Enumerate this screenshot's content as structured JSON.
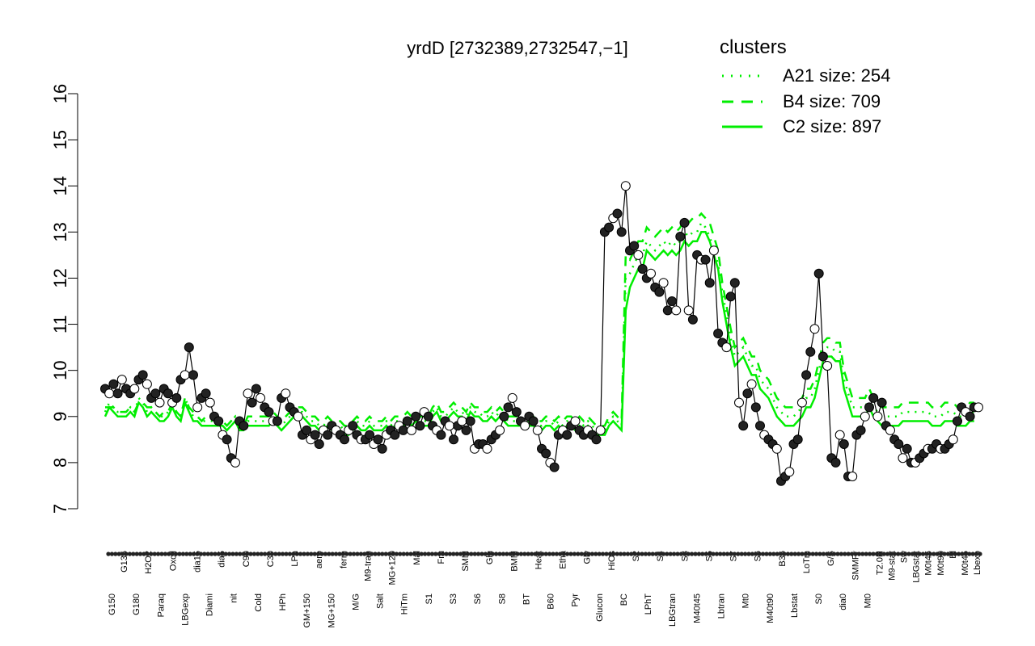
{
  "colors": {
    "accent": "#00ee00",
    "axis": "#000000",
    "point_fill_dark": "#222222",
    "point_fill_light": "#ffffff"
  },
  "chart_data": {
    "type": "line",
    "title": "yrdD [2732389,2732547,−1]",
    "xlabel": "",
    "ylabel": "",
    "ylim": [
      7,
      16
    ],
    "yticks": [
      7,
      8,
      9,
      10,
      11,
      12,
      13,
      14,
      15,
      16
    ],
    "grid": false,
    "legend": {
      "title": "clusters",
      "placement": "top-right",
      "entries": [
        {
          "label": "A21 size: 254",
          "style": "dotted"
        },
        {
          "label": "B4 size: 709",
          "style": "dashed"
        },
        {
          "label": "C2 size: 897",
          "style": "solid"
        }
      ]
    },
    "x_tick_labels_lower": [
      "G150",
      "G180",
      "Paraq",
      "LBGexp",
      "Diami",
      "nit",
      "Cold",
      "HPh",
      "GM+150",
      "MG+150",
      "M/G",
      "Salt",
      "HiTm",
      "S1",
      "S3",
      "S6",
      "S8",
      "BT",
      "B60",
      "Pyr",
      "Glucon",
      "BC",
      "LPhT",
      "LBGtran",
      "M40t45",
      "Lbtran",
      "Mt0",
      "M40t90",
      "Lbstat",
      "S0",
      "dia0",
      "Mt0"
    ],
    "x_tick_labels_upper": [
      "G135",
      "H2O2",
      "Oxctl",
      "dia15",
      "dia5",
      "C90",
      "C30",
      "LPh",
      "aero",
      "ferm",
      "M9-tran",
      "MG+120",
      "Mal",
      "Fru",
      "SMM",
      "Glu",
      "BMM",
      "Heat",
      "Etha",
      "Gly",
      "HiOs",
      "S2",
      "S4",
      "S3",
      "S5",
      "S7",
      "S6",
      "B36",
      "LoTm",
      "G/S",
      "SMMPr",
      "T2.0H",
      "M9-stat",
      "Sw",
      "LBGstat",
      "M0t45",
      "M0t90",
      "Bl",
      "M0t45",
      "Lbexp"
    ],
    "series": [
      {
        "name": "yrdD",
        "values": [
          9.6,
          9.5,
          9.7,
          9.5,
          9.8,
          9.6,
          9.5,
          9.6,
          9.8,
          9.9,
          9.7,
          9.4,
          9.5,
          9.3,
          9.6,
          9.5,
          9.3,
          9.4,
          9.8,
          9.9,
          10.5,
          9.9,
          9.2,
          9.4,
          9.5,
          9.3,
          9.0,
          8.9,
          8.6,
          8.5,
          8.1,
          8.0,
          8.9,
          8.8,
          9.5,
          9.3,
          9.6,
          9.4,
          9.2,
          9.1,
          8.9,
          8.9,
          9.4,
          9.5,
          9.2,
          9.1,
          9.0,
          8.6,
          8.7,
          8.5,
          8.6,
          8.4,
          8.7,
          8.6,
          8.8,
          8.7,
          8.6,
          8.5,
          8.7,
          8.8,
          8.6,
          8.5,
          8.5,
          8.6,
          8.4,
          8.5,
          8.3,
          8.6,
          8.7,
          8.6,
          8.8,
          8.7,
          8.9,
          8.7,
          9.0,
          8.8,
          9.1,
          9.0,
          8.8,
          8.7,
          8.6,
          8.9,
          8.8,
          8.5,
          8.8,
          8.9,
          8.7,
          8.9,
          8.3,
          8.4,
          8.4,
          8.3,
          8.5,
          8.6,
          8.7,
          9.0,
          9.2,
          9.4,
          9.1,
          8.9,
          8.8,
          9.0,
          8.9,
          8.7,
          8.3,
          8.2,
          8.0,
          7.9,
          8.6,
          8.7,
          8.6,
          8.8,
          8.9,
          8.7,
          8.6,
          8.7,
          8.6,
          8.5,
          8.7,
          13.0,
          13.1,
          13.3,
          13.4,
          13.0,
          14.0,
          12.6,
          12.7,
          12.5,
          12.2,
          12.0,
          12.1,
          11.8,
          11.7,
          11.9,
          11.3,
          11.5,
          11.3,
          12.9,
          13.2,
          11.3,
          11.1,
          12.5,
          12.4,
          12.4,
          11.9,
          12.6,
          10.8,
          10.6,
          10.5,
          11.6,
          11.9,
          9.3,
          8.8,
          9.5,
          9.7,
          9.2,
          8.8,
          8.6,
          8.5,
          8.4,
          8.3,
          7.6,
          7.7,
          7.8,
          8.4,
          8.5,
          9.3,
          9.9,
          10.4,
          10.9,
          12.1,
          10.3,
          10.1,
          8.1,
          8.0,
          8.6,
          8.4,
          7.7,
          7.7,
          8.6,
          8.7,
          9.0,
          9.2,
          9.4,
          9.0,
          9.3,
          8.8,
          8.7,
          8.5,
          8.4,
          8.1,
          8.3,
          8.0,
          8.0,
          8.1,
          8.2,
          8.3,
          8.3,
          8.4,
          8.3,
          8.3,
          8.4,
          8.5,
          8.9,
          9.2,
          9.1,
          9.0,
          9.2,
          9.2
        ]
      },
      {
        "name": "C2 size: 897",
        "values": [
          9.0,
          9.2,
          9.1,
          9.0,
          9.0,
          9.0,
          9.1,
          9.0,
          9.3,
          9.2,
          9.0,
          9.1,
          9.0,
          8.9,
          8.9,
          9.0,
          9.2,
          9.0,
          8.9,
          9.3,
          9.1,
          8.9,
          8.9,
          8.8,
          8.8,
          8.8,
          8.8,
          8.8,
          8.8,
          8.7,
          8.8,
          8.9,
          8.7,
          8.7,
          8.8,
          8.8,
          8.8,
          8.8,
          8.8,
          8.8,
          8.9,
          8.8,
          8.7,
          8.8,
          8.9,
          9.0,
          9.0,
          9.0,
          8.9,
          8.8,
          8.8,
          8.7,
          8.7,
          8.8,
          8.7,
          8.7,
          8.7,
          8.6,
          8.6,
          8.7,
          8.8,
          8.7,
          8.7,
          8.8,
          8.7,
          8.7,
          8.7,
          8.8,
          8.7,
          8.8,
          8.8,
          8.8,
          8.9,
          8.8,
          8.9,
          8.8,
          8.8,
          8.8,
          9.0,
          9.1,
          8.9,
          8.9,
          9.0,
          9.1,
          9.0,
          9.0,
          8.9,
          9.1,
          9.0,
          9.0,
          8.9,
          8.9,
          9.0,
          8.9,
          9.0,
          8.9,
          8.8,
          8.8,
          8.8,
          8.8,
          8.8,
          8.8,
          8.8,
          8.7,
          8.7,
          8.8,
          8.8,
          8.7,
          8.8,
          8.7,
          8.8,
          8.8,
          8.7,
          8.8,
          8.7,
          8.8,
          8.7,
          8.6,
          8.6,
          8.6,
          8.8,
          8.9,
          8.8,
          8.7,
          11.3,
          11.8,
          12.0,
          12.2,
          12.2,
          12.6,
          12.5,
          12.4,
          12.5,
          12.6,
          12.5,
          12.6,
          12.5,
          12.6,
          12.8,
          12.7,
          12.8,
          12.8,
          13.0,
          13.0,
          12.8,
          12.5,
          12.2,
          11.5,
          11.0,
          10.5,
          10.1,
          10.2,
          10.3,
          10.1,
          9.9,
          9.9,
          9.6,
          9.5,
          9.4,
          9.2,
          9.0,
          8.9,
          8.8,
          8.8,
          8.8,
          8.9,
          9.0,
          9.2,
          9.2,
          9.4,
          9.8,
          10.2,
          10.3,
          10.3,
          10.2,
          10.2,
          9.6,
          9.3,
          9.0,
          9.0,
          9.0,
          9.0,
          9.2,
          9.0,
          8.9,
          8.8,
          8.8,
          8.8,
          8.8,
          8.8,
          8.9,
          8.9,
          8.9,
          8.9,
          8.9,
          8.9,
          8.9,
          8.8,
          8.8,
          8.8,
          8.9,
          8.9,
          8.9,
          8.8,
          8.8,
          8.8,
          8.9,
          8.9
        ]
      },
      {
        "name": "B4 size: 709",
        "values": [
          9.2,
          9.2,
          9.2,
          9.1,
          9.1,
          9.1,
          9.2,
          9.1,
          9.3,
          9.3,
          9.2,
          9.2,
          9.1,
          9.0,
          9.1,
          9.1,
          9.3,
          9.1,
          9.0,
          9.4,
          9.2,
          9.1,
          9.0,
          8.9,
          9.0,
          9.0,
          8.9,
          8.9,
          8.9,
          8.8,
          8.9,
          9.0,
          8.8,
          8.8,
          9.0,
          9.0,
          9.0,
          9.0,
          9.0,
          9.0,
          9.1,
          9.0,
          8.9,
          9.0,
          9.1,
          9.2,
          9.2,
          9.2,
          9.1,
          9.0,
          9.0,
          8.9,
          8.9,
          9.0,
          8.9,
          8.9,
          8.9,
          8.8,
          8.8,
          8.9,
          9.0,
          8.9,
          8.9,
          9.0,
          8.9,
          8.9,
          8.9,
          9.0,
          8.9,
          9.0,
          9.0,
          9.0,
          9.1,
          9.0,
          9.1,
          9.0,
          9.0,
          9.0,
          9.2,
          9.3,
          9.1,
          9.1,
          9.2,
          9.3,
          9.2,
          9.2,
          9.1,
          9.3,
          9.2,
          9.2,
          9.1,
          9.1,
          9.2,
          9.1,
          9.2,
          9.1,
          9.0,
          9.0,
          9.0,
          9.0,
          9.0,
          9.0,
          9.0,
          8.9,
          8.9,
          9.0,
          9.0,
          8.9,
          9.0,
          8.9,
          9.0,
          9.0,
          8.9,
          9.0,
          8.9,
          9.0,
          8.9,
          8.8,
          8.8,
          8.8,
          9.0,
          9.1,
          9.0,
          8.9,
          12.5,
          12.4,
          12.6,
          12.8,
          12.8,
          13.1,
          13.0,
          12.9,
          13.0,
          13.1,
          13.0,
          13.1,
          13.0,
          13.1,
          13.3,
          13.2,
          13.3,
          13.3,
          13.4,
          13.3,
          13.2,
          12.9,
          12.6,
          11.9,
          11.4,
          10.9,
          10.5,
          10.6,
          10.7,
          10.5,
          10.3,
          10.3,
          10.0,
          9.9,
          9.8,
          9.6,
          9.4,
          9.3,
          9.2,
          9.2,
          9.2,
          9.3,
          9.4,
          9.6,
          9.6,
          9.8,
          10.2,
          10.6,
          10.7,
          10.7,
          10.6,
          10.6,
          10.0,
          9.7,
          9.4,
          9.4,
          9.4,
          9.4,
          9.6,
          9.4,
          9.3,
          9.2,
          9.2,
          9.2,
          9.2,
          9.2,
          9.3,
          9.3,
          9.3,
          9.3,
          9.3,
          9.3,
          9.3,
          9.2,
          9.2,
          9.2,
          9.3,
          9.3,
          9.3,
          9.2,
          9.2,
          9.2,
          9.3,
          9.3
        ]
      },
      {
        "name": "A21 size: 254",
        "values": [
          9.1,
          9.3,
          9.2,
          9.1,
          9.1,
          9.1,
          9.2,
          9.1,
          9.4,
          9.3,
          9.1,
          9.2,
          9.1,
          9.0,
          9.0,
          9.1,
          9.3,
          9.1,
          9.0,
          9.4,
          9.2,
          9.0,
          9.0,
          8.9,
          8.9,
          8.9,
          8.9,
          8.9,
          8.9,
          8.8,
          8.9,
          9.0,
          8.8,
          8.8,
          8.9,
          8.9,
          8.9,
          8.9,
          8.9,
          8.9,
          9.0,
          8.9,
          8.8,
          8.9,
          9.0,
          9.1,
          9.1,
          9.1,
          9.0,
          8.9,
          8.9,
          8.8,
          8.8,
          8.9,
          8.8,
          8.8,
          8.8,
          8.7,
          8.7,
          8.8,
          8.9,
          8.8,
          8.8,
          8.9,
          8.8,
          8.8,
          8.8,
          8.9,
          8.8,
          8.9,
          8.9,
          8.9,
          9.0,
          8.9,
          9.0,
          8.9,
          8.9,
          8.9,
          9.1,
          9.2,
          9.0,
          9.0,
          9.1,
          9.2,
          9.1,
          9.1,
          9.0,
          9.2,
          9.1,
          9.1,
          9.0,
          9.0,
          9.1,
          9.0,
          9.1,
          9.0,
          8.9,
          8.9,
          8.9,
          8.9,
          8.9,
          8.9,
          8.9,
          8.8,
          8.8,
          8.9,
          8.9,
          8.8,
          8.9,
          8.8,
          8.9,
          8.9,
          8.8,
          8.9,
          8.8,
          8.9,
          8.8,
          8.7,
          8.7,
          8.7,
          8.9,
          9.0,
          8.9,
          8.8,
          12.0,
          12.1,
          12.3,
          12.5,
          12.5,
          12.8,
          12.7,
          12.6,
          12.7,
          12.8,
          12.7,
          12.8,
          12.7,
          12.8,
          13.0,
          12.9,
          13.0,
          13.0,
          13.2,
          13.1,
          12.9,
          12.6,
          12.3,
          11.7,
          11.2,
          10.7,
          10.3,
          10.4,
          10.5,
          10.3,
          10.1,
          10.1,
          9.8,
          9.7,
          9.6,
          9.4,
          9.2,
          9.1,
          9.0,
          9.0,
          9.0,
          9.1,
          9.2,
          9.4,
          9.4,
          9.6,
          10.0,
          10.4,
          10.5,
          10.5,
          10.4,
          10.4,
          9.8,
          9.5,
          9.2,
          9.2,
          9.2,
          9.2,
          9.4,
          9.2,
          9.1,
          9.0,
          9.0,
          9.0,
          9.0,
          9.0,
          9.1,
          9.1,
          9.1,
          9.1,
          9.1,
          9.1,
          9.1,
          9.0,
          9.0,
          9.0,
          9.1,
          9.1,
          9.1,
          9.0,
          9.0,
          9.0,
          9.1,
          9.1
        ]
      }
    ]
  }
}
